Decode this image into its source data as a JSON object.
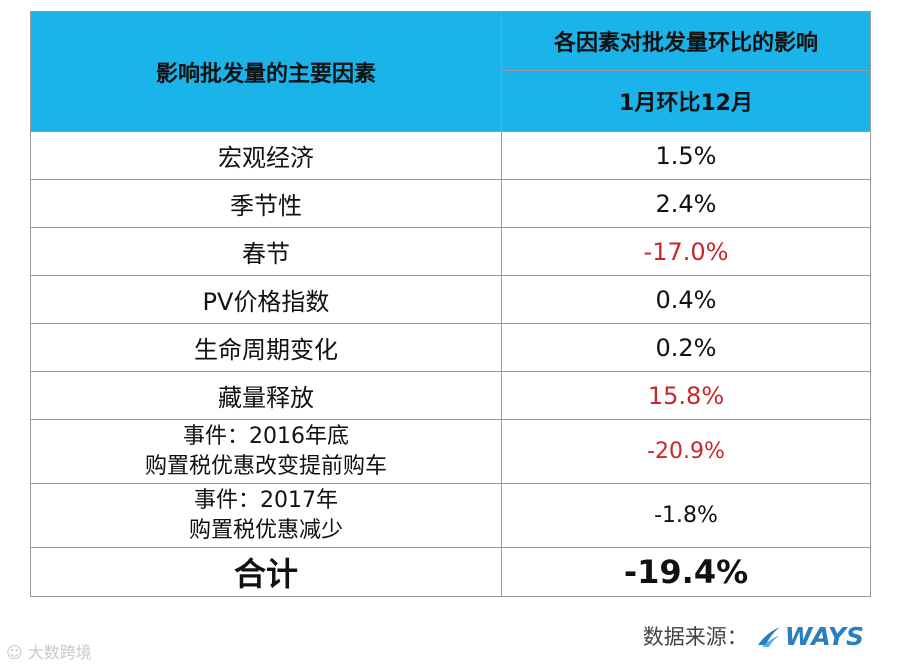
{
  "table": {
    "header_left": "影响批发量的主要因素",
    "header_right_top": "各因素对批发量环比的影响",
    "header_right_sub": "1月环比12月",
    "rows": [
      {
        "factor": "宏观经济",
        "value": "1.5%"
      },
      {
        "factor": "季节性",
        "value": "2.4%"
      },
      {
        "factor": "春节",
        "value": "-17.0%"
      },
      {
        "factor": "PV价格指数",
        "value": "0.4%"
      },
      {
        "factor": "生命周期变化",
        "value": "0.2%"
      },
      {
        "factor": "藏量释放",
        "value": "15.8%"
      },
      {
        "factor_line1": "事件：2016年底",
        "factor_line2": "购置税优惠改变提前购车",
        "value": "-20.9%"
      },
      {
        "factor_line1": "事件：2017年",
        "factor_line2": "购置税优惠减少",
        "value": "-1.8%"
      }
    ],
    "total": {
      "label": "合计",
      "value": "-19.4%"
    }
  },
  "footer": {
    "watermark": "大数跨境",
    "source_label": "数据来源：",
    "logo_text": "WAYS"
  },
  "colors": {
    "header_bg": "#1ab3ea",
    "highlight_red": "#c8262b",
    "logo_blue": "#2a7fc0"
  }
}
